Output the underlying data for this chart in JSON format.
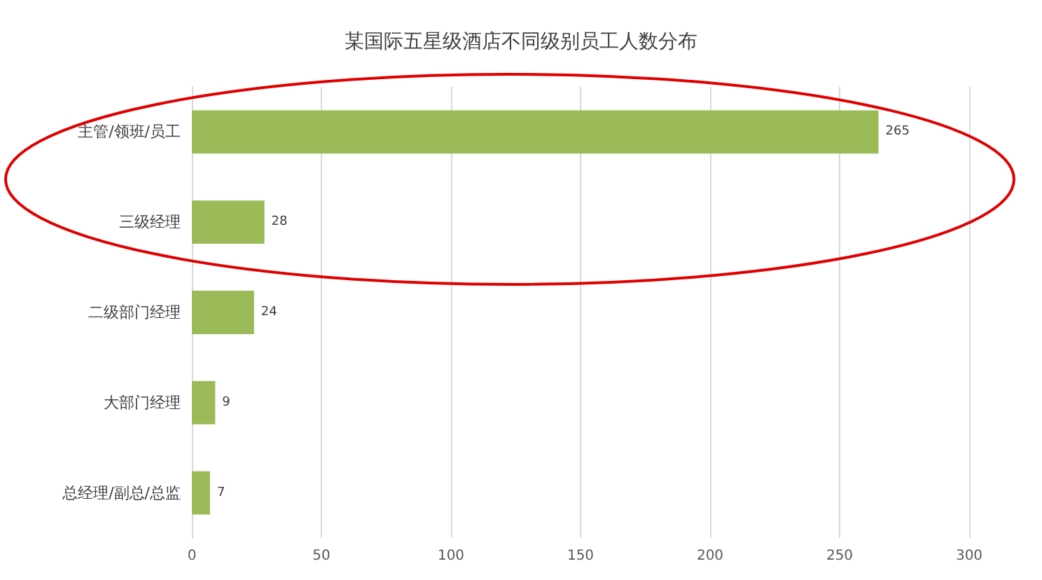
{
  "chart_data": {
    "type": "bar",
    "orientation": "horizontal",
    "title": "某国际五星级酒店不同级别员工人数分布",
    "categories": [
      "主管/领班/员工",
      "三级经理",
      "二级部门经理",
      "大部门经理",
      "总经理/副总/总监"
    ],
    "values": [
      265,
      28,
      24,
      9,
      7
    ],
    "color": "#9bbb59",
    "data_labels": true,
    "xlim": [
      0,
      300
    ],
    "xticks": [
      0,
      50,
      100,
      150,
      200,
      250,
      300
    ],
    "grid": "x"
  }
}
